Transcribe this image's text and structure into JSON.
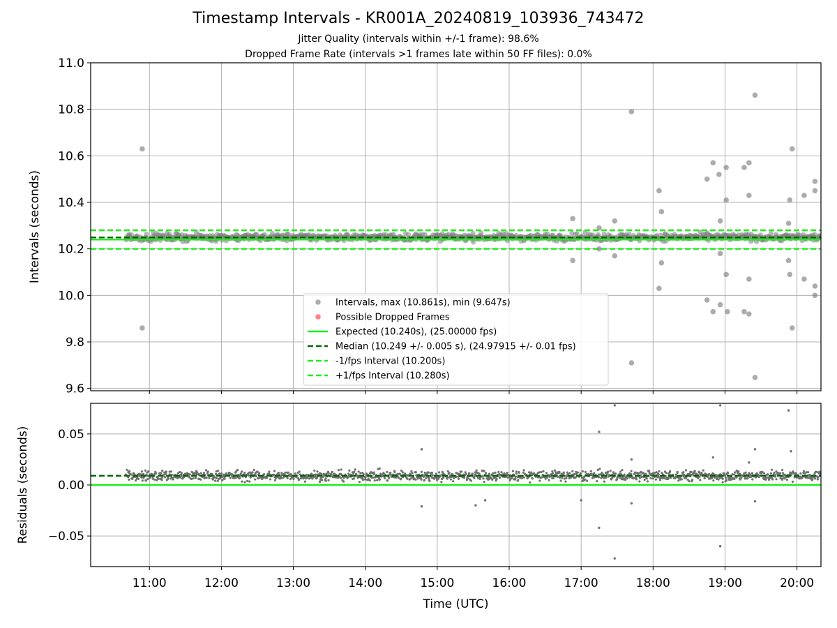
{
  "chart_data": [
    {
      "type": "scatter",
      "title": "Timestamp Intervals - KR001A_20240819_103936_743472",
      "subtitle_lines": [
        "Jitter Quality (intervals within +/-1 frame): 98.6%",
        "Dropped Frame Rate (intervals >1 frames late within 50 FF files): 0.0%"
      ],
      "xlabel": "",
      "ylabel": "Intervals (seconds)",
      "xlim": [
        "10:11",
        "20:20"
      ],
      "ylim": [
        9.59,
        11.0
      ],
      "yticks": [
        9.6,
        9.8,
        10.0,
        10.2,
        10.4,
        10.6,
        10.8,
        11.0
      ],
      "ytick_labels": [
        "9.6",
        "9.8",
        "10.0",
        "10.2",
        "10.4",
        "10.6",
        "10.8",
        "11.0"
      ],
      "xticks": [
        "11:00",
        "12:00",
        "13:00",
        "14:00",
        "15:00",
        "16:00",
        "17:00",
        "18:00",
        "19:00",
        "20:00"
      ],
      "grid": true,
      "legend_position": "lower-center",
      "typical_band": {
        "center": 10.25,
        "spread": 0.015,
        "x_start": "10:40",
        "x_end": "20:20"
      },
      "series": [
        {
          "name": "Intervals, max (10.861s), min (9.647s)",
          "color": "#808080",
          "marker": "circle",
          "points": [
            {
              "x": "10:54",
              "y": 10.63
            },
            {
              "x": "10:54",
              "y": 9.86
            },
            {
              "x": "16:53",
              "y": 10.33
            },
            {
              "x": "16:53",
              "y": 10.15
            },
            {
              "x": "17:15",
              "y": 10.29
            },
            {
              "x": "17:15",
              "y": 10.2
            },
            {
              "x": "17:28",
              "y": 10.32
            },
            {
              "x": "17:28",
              "y": 10.17
            },
            {
              "x": "17:42",
              "y": 10.79
            },
            {
              "x": "17:42",
              "y": 9.71
            },
            {
              "x": "18:05",
              "y": 10.45
            },
            {
              "x": "18:05",
              "y": 10.03
            },
            {
              "x": "18:07",
              "y": 10.36
            },
            {
              "x": "18:07",
              "y": 10.14
            },
            {
              "x": "18:45",
              "y": 10.5
            },
            {
              "x": "18:45",
              "y": 9.98
            },
            {
              "x": "18:50",
              "y": 10.57
            },
            {
              "x": "18:50",
              "y": 9.93
            },
            {
              "x": "18:55",
              "y": 10.52
            },
            {
              "x": "18:56",
              "y": 10.32
            },
            {
              "x": "18:56",
              "y": 10.18
            },
            {
              "x": "18:56",
              "y": 9.96
            },
            {
              "x": "19:01",
              "y": 10.55
            },
            {
              "x": "19:01",
              "y": 10.41
            },
            {
              "x": "19:01",
              "y": 10.09
            },
            {
              "x": "19:02",
              "y": 9.93
            },
            {
              "x": "19:16",
              "y": 10.55
            },
            {
              "x": "19:16",
              "y": 9.93
            },
            {
              "x": "19:20",
              "y": 10.57
            },
            {
              "x": "19:20",
              "y": 10.43
            },
            {
              "x": "19:20",
              "y": 10.07
            },
            {
              "x": "19:20",
              "y": 9.92
            },
            {
              "x": "19:25",
              "y": 10.861
            },
            {
              "x": "19:25",
              "y": 9.647
            },
            {
              "x": "19:53",
              "y": 10.31
            },
            {
              "x": "19:53",
              "y": 10.15
            },
            {
              "x": "19:54",
              "y": 10.41
            },
            {
              "x": "19:54",
              "y": 10.09
            },
            {
              "x": "19:56",
              "y": 10.63
            },
            {
              "x": "19:56",
              "y": 9.86
            },
            {
              "x": "20:06",
              "y": 10.43
            },
            {
              "x": "20:06",
              "y": 10.07
            },
            {
              "x": "20:15",
              "y": 10.49
            },
            {
              "x": "20:15",
              "y": 10.45
            },
            {
              "x": "20:15",
              "y": 10.04
            },
            {
              "x": "20:15",
              "y": 10.0
            }
          ]
        },
        {
          "name": "Possible Dropped Frames",
          "color": "#ff4040",
          "marker": "circle",
          "points": []
        },
        {
          "name": "Expected (10.240s), (25.00000 fps)",
          "color": "#1aee1a",
          "style": "solid",
          "y": 10.24
        },
        {
          "name": "Median (10.249 +/- 0.005 s), (24.97915 +/- 0.01 fps)",
          "color": "#006400",
          "style": "dashed",
          "y": 10.249
        },
        {
          "name": "-1/fps Interval (10.200s)",
          "color": "#1aee1a",
          "style": "dashed",
          "y": 10.2
        },
        {
          "name": "+1/fps Interval (10.280s)",
          "color": "#1aee1a",
          "style": "dashed",
          "y": 10.28
        }
      ]
    },
    {
      "type": "scatter",
      "title": "",
      "xlabel": "Time (UTC)",
      "ylabel": "Residuals (seconds)",
      "xlim": [
        "10:11",
        "20:20"
      ],
      "ylim": [
        -0.08,
        0.08
      ],
      "yticks": [
        -0.05,
        0.0,
        0.05
      ],
      "ytick_labels": [
        "−0.05",
        "0.00",
        "0.05"
      ],
      "xticks": [
        "11:00",
        "12:00",
        "13:00",
        "14:00",
        "15:00",
        "16:00",
        "17:00",
        "18:00",
        "19:00",
        "20:00"
      ],
      "grid": true,
      "typical_band": {
        "center": 0.009,
        "spread": 0.005,
        "x_start": "10:40",
        "x_end": "20:20"
      },
      "series": [
        {
          "name": "",
          "color": "#808080",
          "marker": "dot",
          "points": [
            {
              "x": "17:15",
              "y": 0.052
            },
            {
              "x": "17:15",
              "y": -0.042
            },
            {
              "x": "17:28",
              "y": 0.078
            },
            {
              "x": "17:28",
              "y": -0.072
            },
            {
              "x": "18:56",
              "y": 0.078
            },
            {
              "x": "18:56",
              "y": -0.06
            },
            {
              "x": "19:53",
              "y": 0.073
            },
            {
              "x": "19:55",
              "y": 0.033
            },
            {
              "x": "19:25",
              "y": 0.035
            },
            {
              "x": "19:25",
              "y": -0.016
            },
            {
              "x": "17:00",
              "y": -0.015
            },
            {
              "x": "17:42",
              "y": 0.025
            },
            {
              "x": "17:42",
              "y": -0.018
            },
            {
              "x": "14:47",
              "y": -0.021
            },
            {
              "x": "15:32",
              "y": -0.02
            },
            {
              "x": "15:40",
              "y": -0.015
            },
            {
              "x": "14:47",
              "y": 0.035
            },
            {
              "x": "18:50",
              "y": 0.027
            },
            {
              "x": "19:20",
              "y": 0.022
            }
          ]
        },
        {
          "name": "",
          "color": "#1aee1a",
          "style": "solid",
          "y": 0.0
        },
        {
          "name": "",
          "color": "#006400",
          "style": "dashed",
          "y": 0.009
        }
      ]
    }
  ]
}
